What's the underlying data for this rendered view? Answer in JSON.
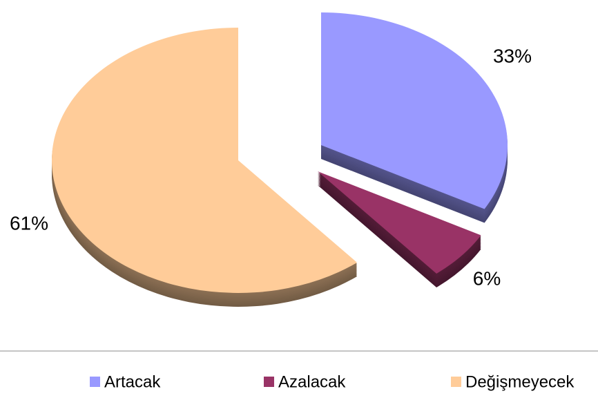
{
  "chart_data": {
    "type": "pie",
    "categories": [
      "Artacak",
      "Azalacak",
      "Değişmeyecek"
    ],
    "values": [
      33,
      6,
      61
    ],
    "value_labels": [
      "33%",
      "6%",
      "61%"
    ],
    "colors": [
      "#9999ff",
      "#993366",
      "#ffcc99"
    ],
    "legend": "bottom"
  }
}
